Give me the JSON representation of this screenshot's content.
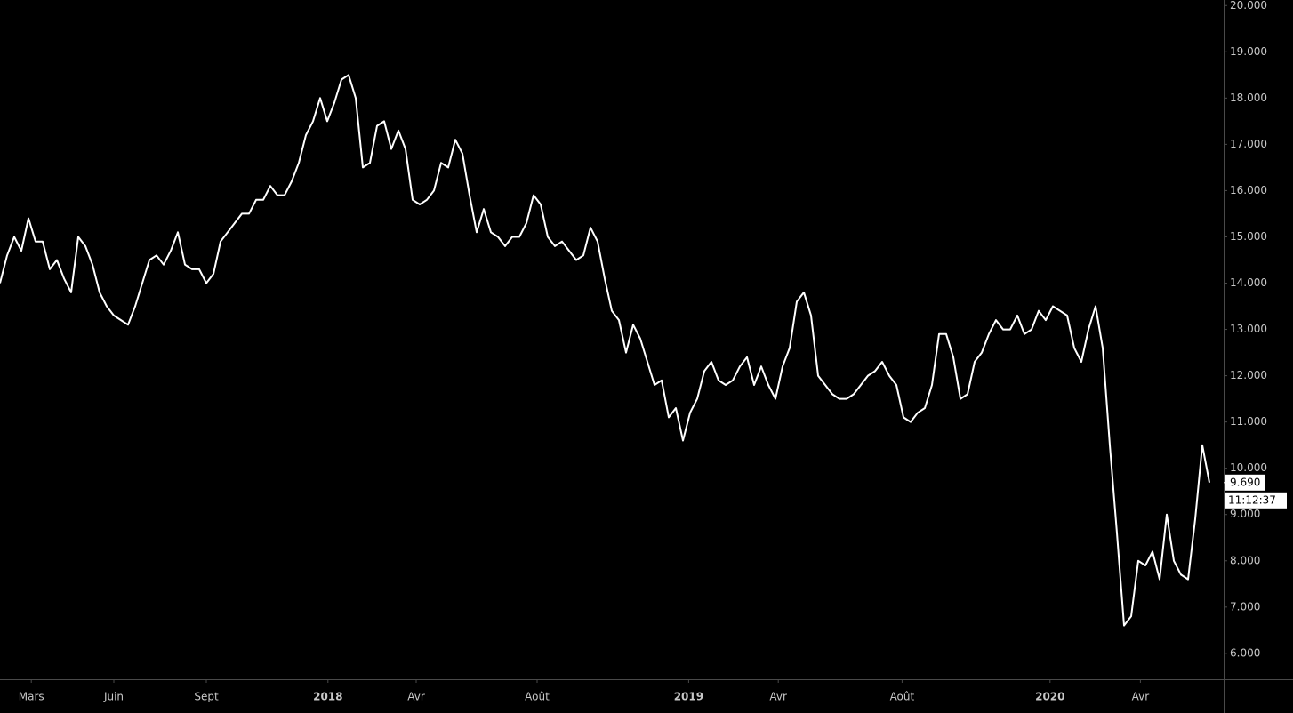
{
  "chart_data": {
    "type": "line",
    "color": "#ffffff",
    "values": [
      14.0,
      14.6,
      15.0,
      14.7,
      15.4,
      14.9,
      14.9,
      14.3,
      14.5,
      14.1,
      13.8,
      15.0,
      14.8,
      14.4,
      13.8,
      13.5,
      13.3,
      13.2,
      13.1,
      13.5,
      14.0,
      14.5,
      14.6,
      14.4,
      14.7,
      15.1,
      14.4,
      14.3,
      14.3,
      14.0,
      14.2,
      14.9,
      15.1,
      15.3,
      15.5,
      15.5,
      15.8,
      15.8,
      16.1,
      15.9,
      15.9,
      16.2,
      16.6,
      17.2,
      17.5,
      18.0,
      17.5,
      17.9,
      18.4,
      18.5,
      18.0,
      16.5,
      16.6,
      17.4,
      17.5,
      16.9,
      17.3,
      16.9,
      15.8,
      15.7,
      15.8,
      16.0,
      16.6,
      16.5,
      17.1,
      16.8,
      15.9,
      15.1,
      15.6,
      15.1,
      15.0,
      14.8,
      15.0,
      15.0,
      15.3,
      15.9,
      15.7,
      15.0,
      14.8,
      14.9,
      14.7,
      14.5,
      14.6,
      15.2,
      14.9,
      14.1,
      13.4,
      13.2,
      12.5,
      13.1,
      12.8,
      12.3,
      11.8,
      11.9,
      11.1,
      11.3,
      10.6,
      11.2,
      11.5,
      12.1,
      12.3,
      11.9,
      11.8,
      11.9,
      12.2,
      12.4,
      11.8,
      12.2,
      11.8,
      11.5,
      12.2,
      12.6,
      13.6,
      13.8,
      13.3,
      12.0,
      11.8,
      11.6,
      11.5,
      11.5,
      11.6,
      11.8,
      12.0,
      12.1,
      12.3,
      12.0,
      11.8,
      11.1,
      11.0,
      11.2,
      11.3,
      11.8,
      12.9,
      12.9,
      12.4,
      11.5,
      11.6,
      12.3,
      12.5,
      12.9,
      13.2,
      13.0,
      13.0,
      13.3,
      12.9,
      13.0,
      13.4,
      13.2,
      13.5,
      13.4,
      13.3,
      12.6,
      12.3,
      13.0,
      13.5,
      12.6,
      10.5,
      8.6,
      6.6,
      6.8,
      8.0,
      7.9,
      8.2,
      7.6,
      9.0,
      8.0,
      7.7,
      7.6,
      8.9,
      10.5,
      9.69
    ],
    "last_value_label": "9.690",
    "last_time": "11:12:37",
    "xlim": [
      0,
      172
    ],
    "xticks": [
      {
        "value": 4.4,
        "label": "Mars"
      },
      {
        "value": 16,
        "label": "Juin"
      },
      {
        "value": 29,
        "label": "Sept"
      },
      {
        "value": 46.1,
        "label": "2018"
      },
      {
        "value": 58.5,
        "label": "Avr"
      },
      {
        "value": 75.5,
        "label": "Août"
      },
      {
        "value": 96.8,
        "label": "2019"
      },
      {
        "value": 109.4,
        "label": "Avr"
      },
      {
        "value": 126.8,
        "label": "Août"
      },
      {
        "value": 147.6,
        "label": "2020"
      },
      {
        "value": 160.3,
        "label": "Avr"
      }
    ],
    "ylim": [
      5.44,
      20.12
    ],
    "yticks": [
      {
        "value": 6,
        "label": "6.000"
      },
      {
        "value": 7,
        "label": "7.000"
      },
      {
        "value": 8,
        "label": "8.000"
      },
      {
        "value": 9,
        "label": "9.000"
      },
      {
        "value": 10,
        "label": "10.000"
      },
      {
        "value": 11,
        "label": "11.000"
      },
      {
        "value": 12,
        "label": "12.000"
      },
      {
        "value": 13,
        "label": "13.000"
      },
      {
        "value": 14,
        "label": "14.000"
      },
      {
        "value": 15,
        "label": "15.000"
      },
      {
        "value": 16,
        "label": "16.000"
      },
      {
        "value": 17,
        "label": "17.000"
      },
      {
        "value": 18,
        "label": "18.000"
      },
      {
        "value": 19,
        "label": "19.000"
      },
      {
        "value": 20,
        "label": "20.000"
      }
    ]
  }
}
